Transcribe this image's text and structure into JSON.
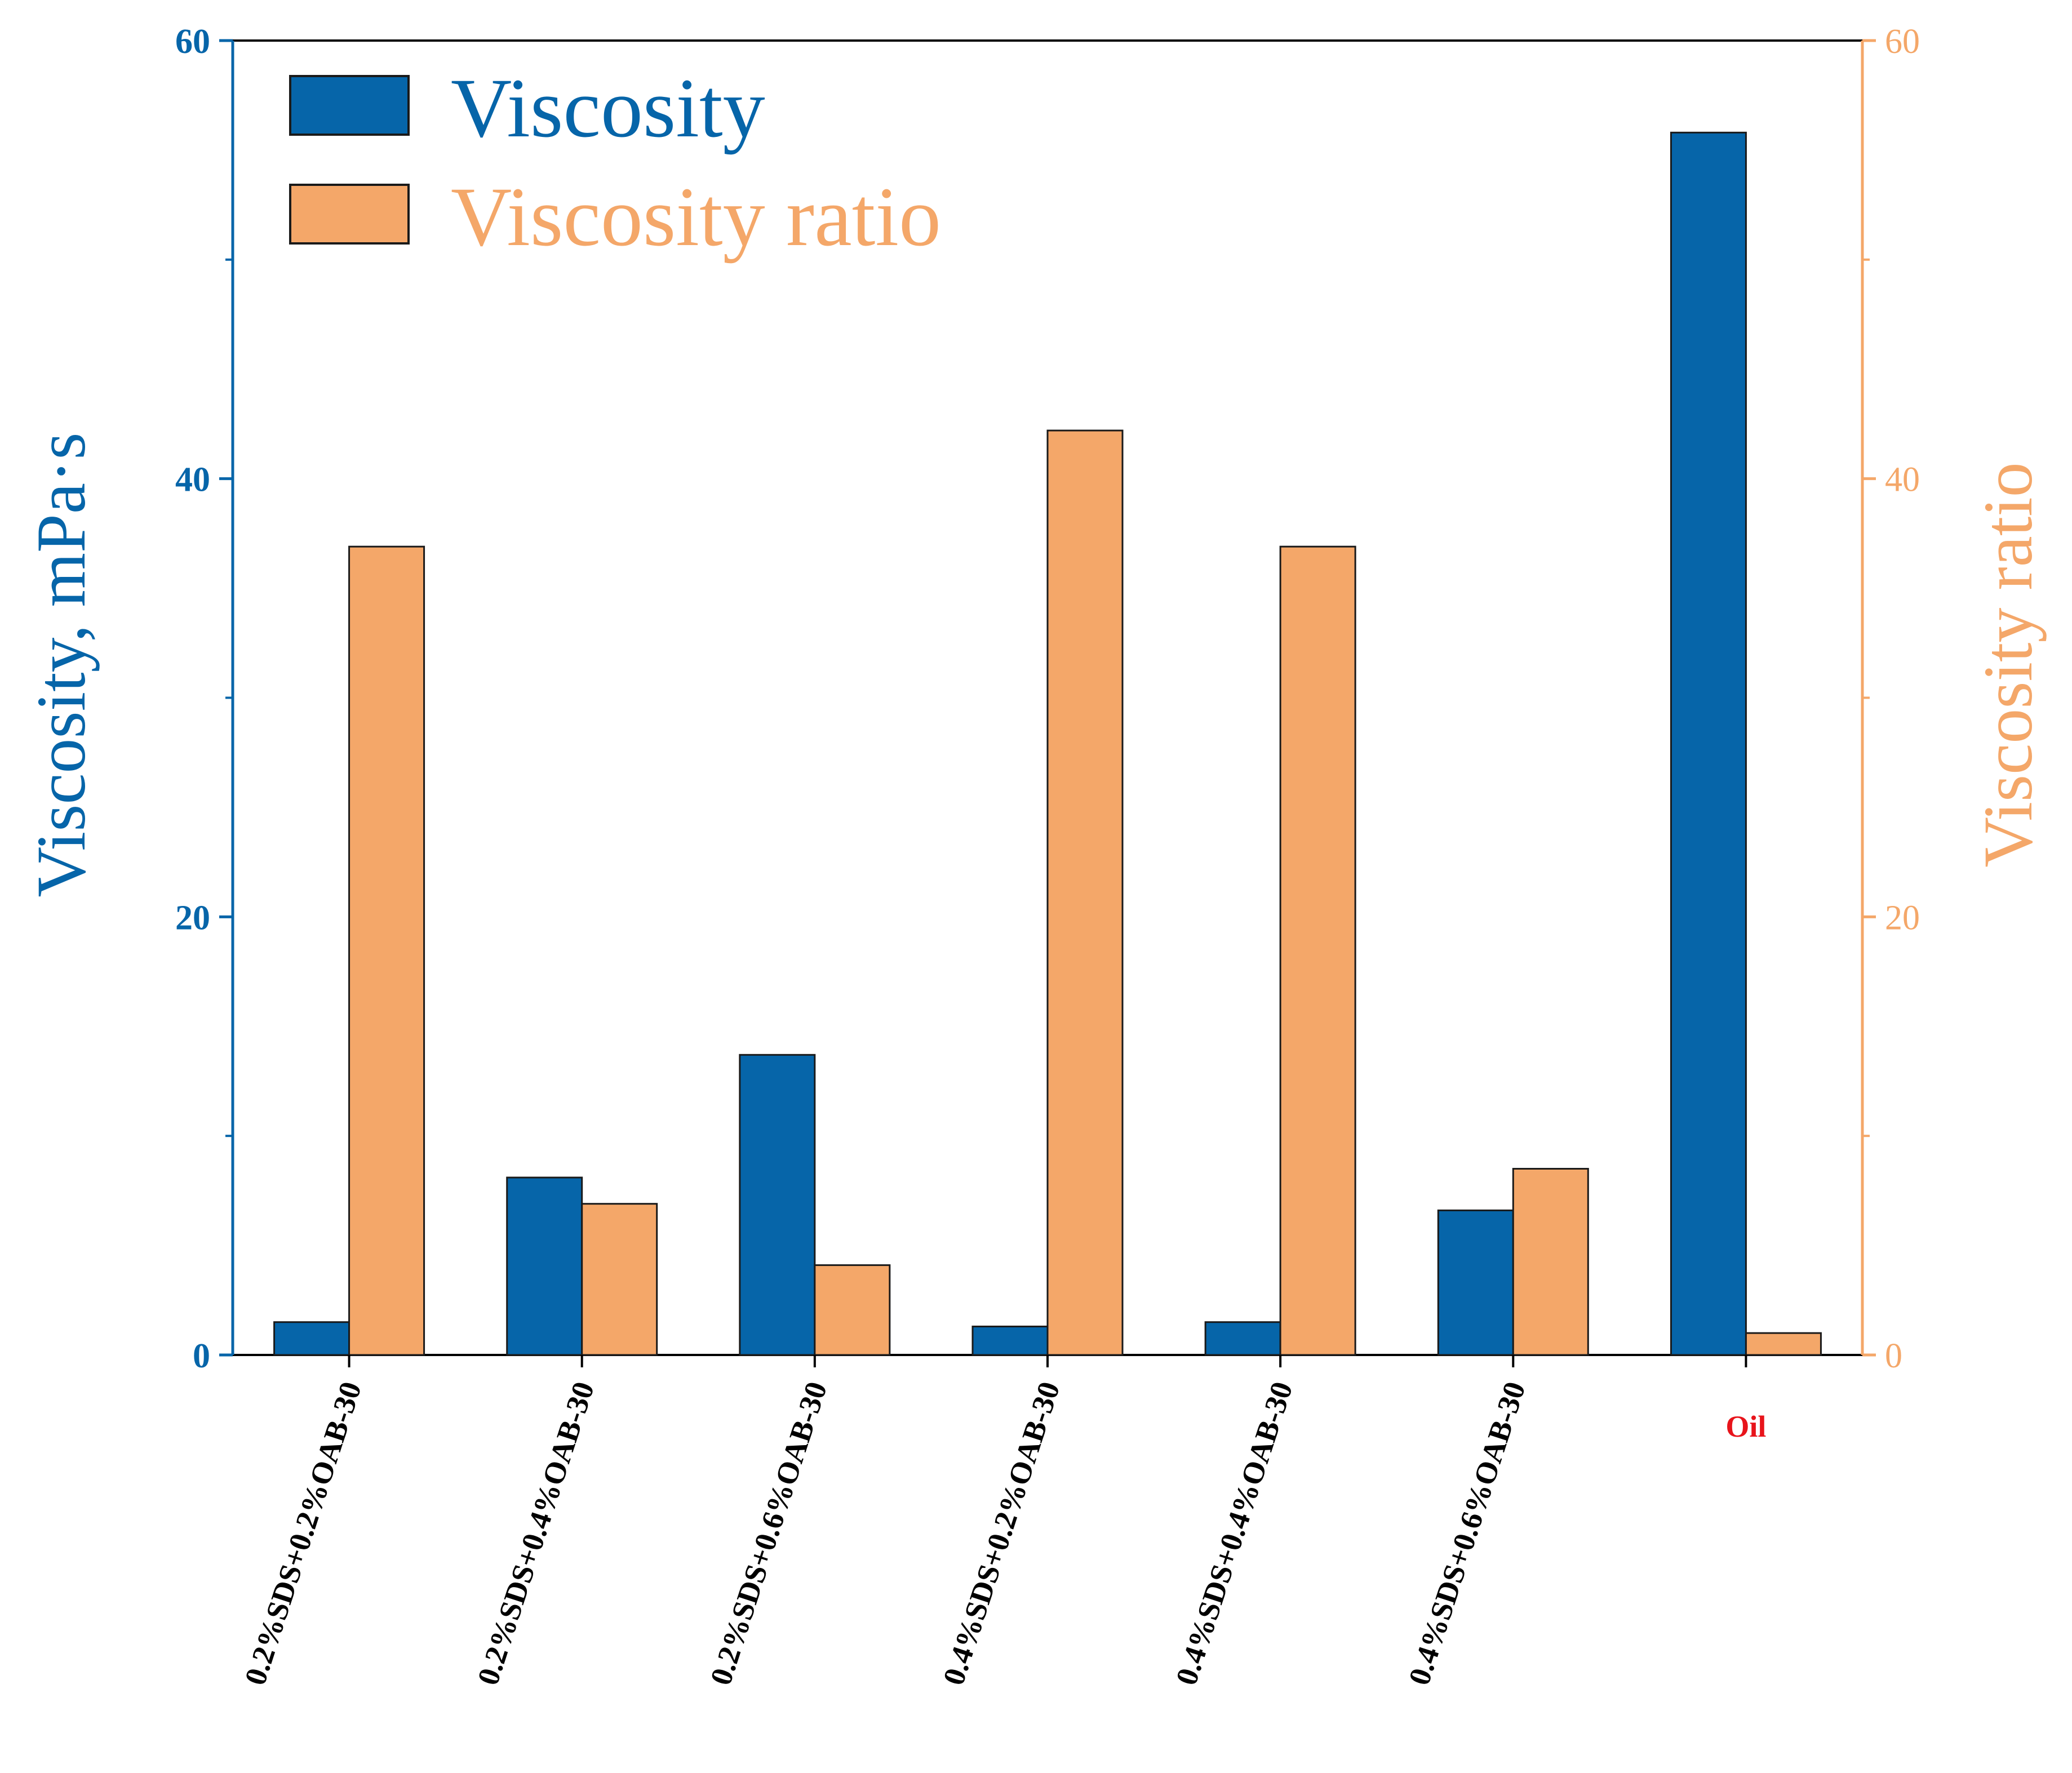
{
  "chart_data": {
    "type": "bar",
    "categories": [
      "0.2%SDS+0.2%OAB-30",
      "0.2%SDS+0.4%OAB-30",
      "0.2%SDS+0.6%OAB-30",
      "0.4%SDS+0.2%OAB-30",
      "0.4%SDS+0.4%OAB-30",
      "0.4%SDS+0.6%OAB-30",
      "Oil"
    ],
    "highlighted_category": "Oil",
    "series": [
      {
        "name": "Viscosity",
        "axis": "left",
        "color": "#0665A9",
        "values": [
          1.5,
          8.1,
          13.7,
          1.3,
          1.5,
          6.6,
          55.8
        ]
      },
      {
        "name": "Viscosity ratio",
        "axis": "right",
        "color": "#F4A769",
        "values": [
          36.9,
          6.9,
          4.1,
          42.2,
          36.9,
          8.5,
          1.0
        ]
      }
    ],
    "ylabel_left": "Viscosity, mPa·s",
    "ylabel_right": "Viscosity ratio",
    "ylim_left": [
      0,
      60
    ],
    "ylim_right": [
      0,
      60
    ],
    "yticks_left": [
      "0",
      "20",
      "40",
      "60"
    ],
    "yticks_right": [
      "0",
      "20",
      "40",
      "60"
    ],
    "legend_placement": "top-left",
    "grid": false
  },
  "colors": {
    "viscosity": "#0665A9",
    "ratio": "#F4A769",
    "highlight": "#E8141B",
    "axis": "#000000"
  }
}
